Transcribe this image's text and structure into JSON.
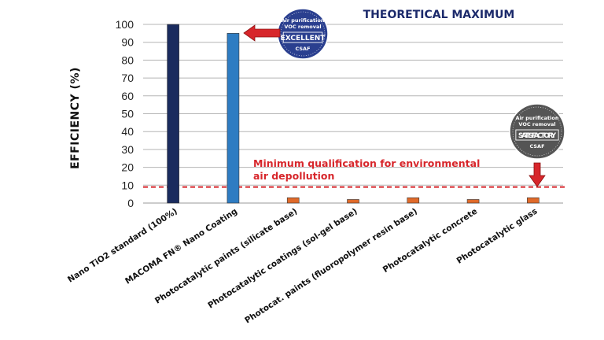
{
  "chart_data": {
    "type": "bar",
    "title": "THEORETICAL MAXIMUM",
    "ylabel": "EFFICIENCY (%)",
    "ylim": [
      0,
      100
    ],
    "yticks": [
      0,
      10,
      20,
      30,
      40,
      50,
      60,
      70,
      80,
      90,
      100
    ],
    "grid": true,
    "categories": [
      "Nano TiO2 standard (100%)",
      "MACOMA FN® Nano Coating",
      "Photocatalytic paints (silicate base)",
      "Photocatalytic coatings (sol-gel base)",
      "Photocat. paints (fluoropolymer resin base)",
      "Photocatalytic concrete",
      "Photocatalytic glass"
    ],
    "values": [
      100,
      95,
      3,
      2,
      3,
      2,
      3
    ],
    "bar_colors": [
      "#1a2b5e",
      "#2e7cc2",
      "#e06a2a",
      "#e06a2a",
      "#e06a2a",
      "#e06a2a",
      "#e06a2a"
    ],
    "threshold": {
      "value": 9,
      "color": "#d7262b",
      "label_line1": "Minimum qualification for environmental",
      "label_line2": "air depollution"
    },
    "badges": [
      {
        "line1": "Air purification",
        "line2": "VOC removal",
        "rating": "EXCELLENT",
        "footer": "CSAF",
        "color": "#2a3f8f",
        "points_to_category": 1
      },
      {
        "line1": "Air purification",
        "line2": "VOC removal",
        "rating": "SATISFACTORY",
        "footer": "CSAF",
        "color": "#555555",
        "points_to_category": 6
      }
    ]
  }
}
